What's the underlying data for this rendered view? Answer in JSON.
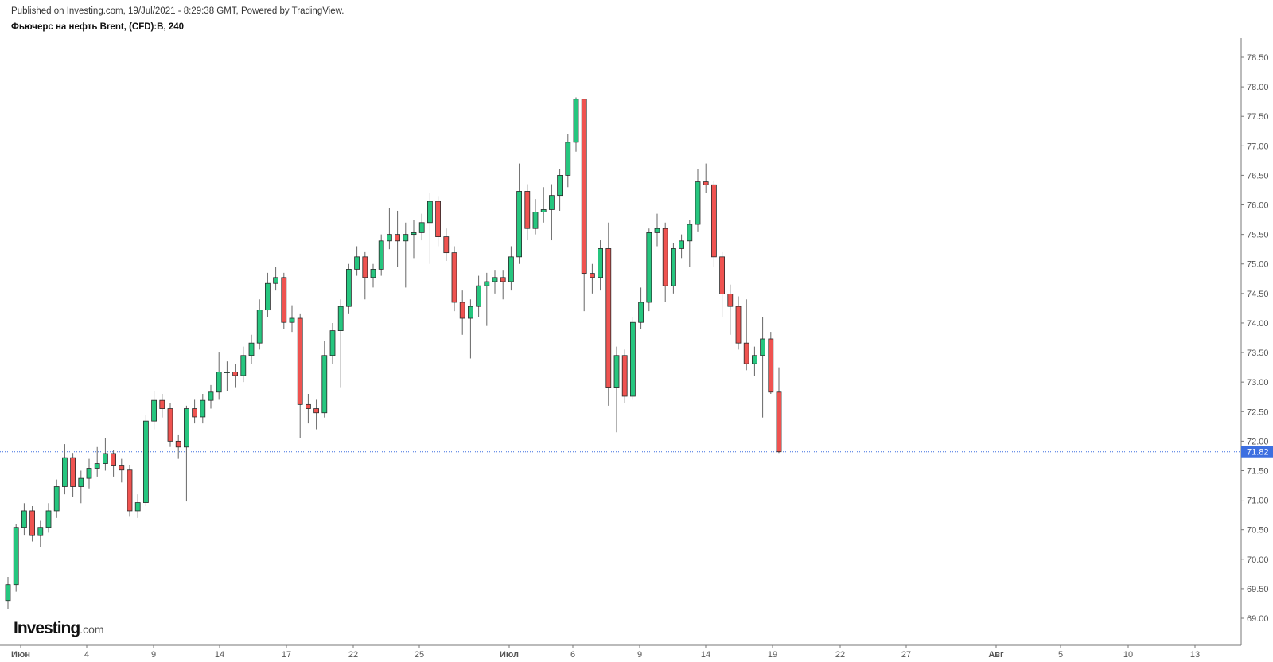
{
  "header": {
    "published": "Published on Investing.com, 19/Jul/2021 - 8:29:38 GMT, Powered by TradingView.",
    "symbol": "Фьючерс на нефть Brent, (CFD):B, 240"
  },
  "logo": {
    "main": "Investing",
    "suffix": ".com"
  },
  "chart_data": {
    "type": "candlestick",
    "title": "Фьючерс на нефть Brent, (CFD):B, 240",
    "ylim": [
      69.0,
      78.5
    ],
    "y_ticks": [
      "69.00",
      "69.50",
      "70.00",
      "70.50",
      "71.00",
      "71.50",
      "72.00",
      "72.50",
      "73.00",
      "73.50",
      "74.00",
      "74.50",
      "75.00",
      "75.50",
      "76.00",
      "76.50",
      "77.00",
      "77.50",
      "78.00",
      "78.50"
    ],
    "x_ticks": [
      "Июн",
      "4",
      "9",
      "14",
      "17",
      "22",
      "25",
      "Июл",
      "6",
      "9",
      "14",
      "19",
      "22",
      "27",
      "Авг",
      "5",
      "10",
      "13"
    ],
    "last_price": 71.82,
    "last_price_label": "71.82",
    "colors": {
      "up": "#26c67f",
      "down": "#ef5350",
      "outline": "#2a2a2a",
      "price_line": "#3d6fe0"
    },
    "candles_ohlc": [
      [
        69.3,
        69.7,
        69.15,
        69.57
      ],
      [
        69.57,
        70.6,
        69.45,
        70.54
      ],
      [
        70.54,
        70.95,
        70.4,
        70.82
      ],
      [
        70.82,
        70.9,
        70.3,
        70.4
      ],
      [
        70.4,
        70.65,
        70.2,
        70.54
      ],
      [
        70.54,
        70.95,
        70.45,
        70.82
      ],
      [
        70.82,
        71.35,
        70.7,
        71.23
      ],
      [
        71.23,
        71.95,
        71.1,
        71.72
      ],
      [
        71.72,
        71.8,
        71.05,
        71.23
      ],
      [
        71.23,
        71.5,
        70.95,
        71.37
      ],
      [
        71.37,
        71.7,
        71.2,
        71.54
      ],
      [
        71.54,
        71.9,
        71.4,
        71.62
      ],
      [
        71.62,
        72.05,
        71.5,
        71.79
      ],
      [
        71.79,
        71.85,
        71.4,
        71.58
      ],
      [
        71.58,
        71.7,
        71.3,
        71.51
      ],
      [
        71.51,
        71.6,
        70.72,
        70.82
      ],
      [
        70.82,
        71.1,
        70.7,
        70.96
      ],
      [
        70.96,
        72.45,
        70.9,
        72.34
      ],
      [
        72.34,
        72.85,
        72.2,
        72.69
      ],
      [
        72.69,
        72.8,
        72.4,
        72.55
      ],
      [
        72.55,
        72.65,
        71.9,
        72.0
      ],
      [
        72.0,
        72.1,
        71.7,
        71.9
      ],
      [
        71.9,
        72.6,
        70.98,
        72.55
      ],
      [
        72.55,
        72.7,
        72.3,
        72.41
      ],
      [
        72.41,
        72.8,
        72.3,
        72.69
      ],
      [
        72.69,
        72.95,
        72.55,
        72.83
      ],
      [
        72.83,
        73.5,
        72.7,
        73.17
      ],
      [
        73.17,
        73.35,
        72.85,
        73.17
      ],
      [
        73.17,
        73.3,
        72.9,
        73.11
      ],
      [
        73.11,
        73.6,
        73.0,
        73.45
      ],
      [
        73.45,
        73.8,
        73.3,
        73.66
      ],
      [
        73.66,
        74.4,
        73.55,
        74.22
      ],
      [
        74.22,
        74.85,
        74.1,
        74.67
      ],
      [
        74.67,
        74.95,
        74.55,
        74.77
      ],
      [
        74.77,
        74.85,
        73.9,
        74.01
      ],
      [
        74.01,
        74.3,
        73.85,
        74.08
      ],
      [
        74.08,
        74.15,
        72.05,
        72.62
      ],
      [
        72.62,
        72.8,
        72.3,
        72.55
      ],
      [
        72.55,
        72.7,
        72.2,
        72.48
      ],
      [
        72.48,
        73.7,
        72.4,
        73.45
      ],
      [
        73.45,
        74.0,
        73.3,
        73.87
      ],
      [
        73.87,
        74.4,
        72.9,
        74.28
      ],
      [
        74.28,
        75.0,
        74.15,
        74.91
      ],
      [
        74.91,
        75.3,
        74.8,
        75.12
      ],
      [
        75.12,
        75.2,
        74.4,
        74.77
      ],
      [
        74.77,
        75.0,
        74.6,
        74.91
      ],
      [
        74.91,
        75.5,
        74.8,
        75.39
      ],
      [
        75.39,
        75.95,
        75.25,
        75.5
      ],
      [
        75.5,
        75.9,
        74.95,
        75.39
      ],
      [
        75.39,
        75.7,
        74.6,
        75.5
      ],
      [
        75.5,
        75.75,
        75.1,
        75.53
      ],
      [
        75.53,
        75.85,
        75.4,
        75.7
      ],
      [
        75.7,
        76.2,
        75.0,
        76.06
      ],
      [
        76.06,
        76.15,
        75.3,
        75.46
      ],
      [
        75.46,
        75.6,
        75.05,
        75.19
      ],
      [
        75.19,
        75.3,
        74.2,
        74.35
      ],
      [
        74.35,
        74.55,
        73.8,
        74.08
      ],
      [
        74.08,
        74.4,
        73.4,
        74.28
      ],
      [
        74.28,
        74.8,
        74.1,
        74.63
      ],
      [
        74.63,
        74.85,
        73.95,
        74.7
      ],
      [
        74.7,
        74.9,
        74.5,
        74.77
      ],
      [
        74.77,
        74.9,
        74.4,
        74.7
      ],
      [
        74.7,
        75.3,
        74.55,
        75.12
      ],
      [
        75.12,
        76.7,
        75.0,
        76.23
      ],
      [
        76.23,
        76.35,
        75.4,
        75.6
      ],
      [
        75.6,
        76.1,
        75.5,
        75.88
      ],
      [
        75.88,
        76.3,
        75.7,
        75.92
      ],
      [
        75.92,
        76.35,
        75.4,
        76.16
      ],
      [
        76.16,
        76.6,
        75.9,
        76.5
      ],
      [
        76.5,
        77.2,
        76.3,
        77.06
      ],
      [
        77.06,
        77.82,
        76.9,
        77.79
      ],
      [
        77.79,
        77.8,
        74.2,
        74.84
      ],
      [
        74.84,
        75.0,
        74.5,
        74.77
      ],
      [
        74.77,
        75.4,
        74.55,
        75.26
      ],
      [
        75.26,
        75.7,
        72.6,
        72.9
      ],
      [
        72.9,
        73.6,
        72.15,
        73.45
      ],
      [
        73.45,
        73.55,
        72.65,
        72.76
      ],
      [
        72.76,
        74.1,
        72.7,
        74.01
      ],
      [
        74.01,
        74.6,
        73.9,
        74.35
      ],
      [
        74.35,
        75.6,
        74.2,
        75.53
      ],
      [
        75.53,
        75.85,
        75.3,
        75.6
      ],
      [
        75.6,
        75.7,
        74.35,
        74.63
      ],
      [
        74.63,
        75.35,
        74.5,
        75.26
      ],
      [
        75.26,
        75.5,
        75.1,
        75.39
      ],
      [
        75.39,
        75.75,
        74.95,
        75.67
      ],
      [
        75.67,
        76.6,
        75.55,
        76.39
      ],
      [
        76.39,
        76.7,
        76.2,
        76.34
      ],
      [
        76.34,
        76.4,
        74.95,
        75.12
      ],
      [
        75.12,
        75.2,
        74.1,
        74.49
      ],
      [
        74.49,
        74.65,
        73.8,
        74.28
      ],
      [
        74.28,
        74.45,
        73.55,
        73.66
      ],
      [
        73.66,
        74.4,
        73.2,
        73.31
      ],
      [
        73.31,
        73.6,
        73.1,
        73.45
      ],
      [
        73.45,
        74.1,
        72.4,
        73.73
      ],
      [
        73.73,
        73.85,
        72.8,
        72.83
      ],
      [
        72.83,
        73.25,
        71.8,
        71.82
      ]
    ]
  }
}
